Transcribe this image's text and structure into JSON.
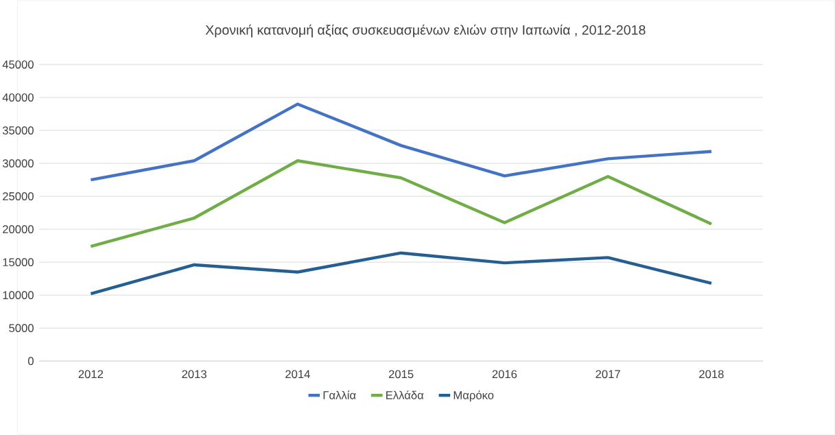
{
  "chart_data": {
    "type": "line",
    "title": "Χρονική κατανομή αξίας συσκευασμένων ελιών στην Ιαπωνία , 2012-2018",
    "categories": [
      "2012",
      "2013",
      "2014",
      "2015",
      "2016",
      "2017",
      "2018"
    ],
    "series": [
      {
        "name": "Γαλλία",
        "color": "#4472c4",
        "values": [
          27500,
          30400,
          39000,
          32700,
          28100,
          30700,
          31800
        ]
      },
      {
        "name": "Ελλάδα",
        "color": "#70ad47",
        "values": [
          17400,
          21700,
          30400,
          27800,
          21000,
          28000,
          20800
        ]
      },
      {
        "name": "Μαρόκο",
        "color": "#255e91",
        "values": [
          10200,
          14600,
          13500,
          16400,
          14900,
          15700,
          11800
        ]
      }
    ],
    "ylim": [
      0,
      45000
    ],
    "yticks": [
      0,
      5000,
      10000,
      15000,
      20000,
      25000,
      30000,
      35000,
      40000,
      45000
    ],
    "grid": "y",
    "legend": "bottom",
    "marker": "none",
    "line_style": "solid"
  }
}
